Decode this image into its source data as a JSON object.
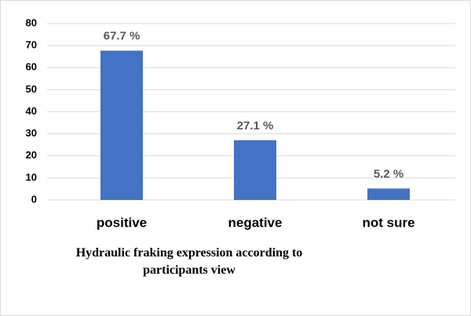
{
  "chart_data": {
    "type": "bar",
    "title": "Hydraulic fraking expression according to participants view",
    "categories": [
      "positive",
      "negative",
      "not sure"
    ],
    "values": [
      67.7,
      27.1,
      5.2
    ],
    "value_labels": [
      "67.7 %",
      "27.1 %",
      "5.2 %"
    ],
    "color": "#4472c4",
    "ylim": [
      0,
      80
    ],
    "yticks": [
      0,
      10,
      20,
      30,
      40,
      50,
      60,
      70,
      80
    ],
    "grid": true
  }
}
